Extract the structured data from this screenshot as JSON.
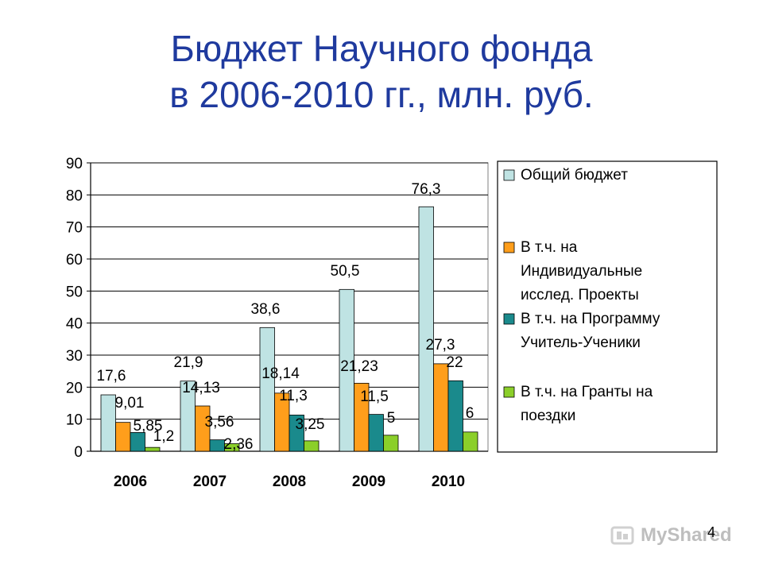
{
  "slide": {
    "title_line1": "Бюджет Научного фонда",
    "title_line2": "в 2006-2010 гг., млн. руб.",
    "page_number": "4",
    "watermark": "MyShared"
  },
  "colors": {
    "title": "#1f3a9e",
    "series": [
      "#bfe3e3",
      "#ff9e1b",
      "#1a8a8c",
      "#8bcf2a"
    ]
  },
  "chart_data": {
    "type": "bar",
    "title": "",
    "xlabel": "",
    "ylabel": "",
    "ylim": [
      0,
      90
    ],
    "yticks": [
      0,
      10,
      20,
      30,
      40,
      50,
      60,
      70,
      80,
      90
    ],
    "grid": true,
    "legend_position": "right",
    "categories": [
      "2006",
      "2007",
      "2008",
      "2009",
      "2010"
    ],
    "series": [
      {
        "name": "Общий бюджет",
        "legend_lines": [
          "Общий бюджет"
        ],
        "values": [
          17.6,
          21.9,
          38.6,
          50.5,
          76.3
        ],
        "labels": [
          "17,6",
          "21,9",
          "38,6",
          "50,5",
          "76,3"
        ]
      },
      {
        "name": "В т.ч. на Индивидуальные исслед. Проекты",
        "legend_lines": [
          "В т.ч. на",
          "Индивидуальные",
          "исслед. Проекты"
        ],
        "values": [
          9.01,
          14.13,
          18.14,
          21.23,
          27.3
        ],
        "labels": [
          "9,01",
          "14,13",
          "18,14",
          "21,23",
          "27,3"
        ]
      },
      {
        "name": "В т.ч. на Программу Учитель-Ученики",
        "legend_lines": [
          "В т.ч. на Программу",
          "Учитель-Ученики"
        ],
        "values": [
          5.85,
          3.56,
          11.3,
          11.5,
          22
        ],
        "labels": [
          "5,85",
          "3,56",
          "11,3",
          "11,5",
          "22"
        ]
      },
      {
        "name": "В т.ч. на Гранты на поездки",
        "legend_lines": [
          "В т.ч. на Гранты на",
          "поездки"
        ],
        "values": [
          1.2,
          2.36,
          3.25,
          5,
          6
        ],
        "labels": [
          "1,2",
          "2,36",
          "3,25",
          "5",
          "6"
        ]
      }
    ]
  }
}
